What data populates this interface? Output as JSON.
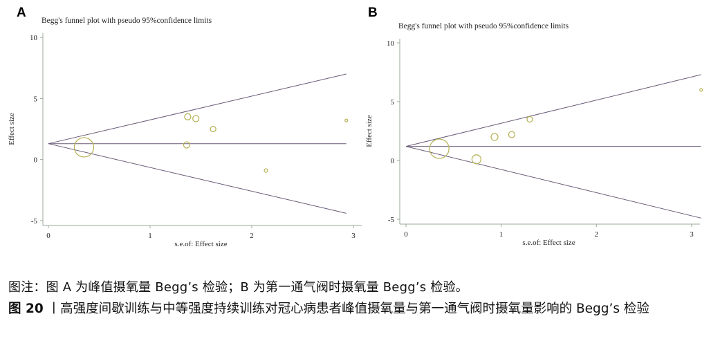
{
  "panels": [
    {
      "letter": "A"
    },
    {
      "letter": "B"
    }
  ],
  "chart_data": [
    {
      "type": "scatter",
      "panel": "A",
      "title": "Begg's funnel plot with pseudo 95%confidence limits",
      "xlabel": "s.e.of: Effect size",
      "ylabel": "Effect size",
      "xlim": [
        0,
        3
      ],
      "ylim": [
        -5,
        10
      ],
      "xticks": [
        0,
        1,
        2,
        3
      ],
      "yticks": [
        -5,
        0,
        5,
        10
      ],
      "points": [
        {
          "x": 0.35,
          "y": 1.0,
          "r": 14
        },
        {
          "x": 1.37,
          "y": 3.5,
          "r": 4.5
        },
        {
          "x": 1.45,
          "y": 3.35,
          "r": 4.5
        },
        {
          "x": 1.62,
          "y": 2.5,
          "r": 4
        },
        {
          "x": 1.36,
          "y": 1.2,
          "r": 4.5
        },
        {
          "x": 2.14,
          "y": -0.9,
          "r": 2.5
        },
        {
          "x": 2.93,
          "y": 3.2,
          "r": 2
        }
      ],
      "pooled_effect": 1.3,
      "limit_upper": [
        [
          0,
          1.3
        ],
        [
          2.93,
          7.0
        ]
      ],
      "limit_lower": [
        [
          0,
          1.3
        ],
        [
          2.93,
          -4.4
        ]
      ],
      "grid": false,
      "marker_color": "#b8b45a",
      "line_color": "#6a5a78"
    },
    {
      "type": "scatter",
      "panel": "B",
      "title": "Begg's funnel plot with pseudo 95%confidence limits",
      "xlabel": "s.e.of: Effect size",
      "ylabel": "Effect size",
      "xlim": [
        0,
        3
      ],
      "ylim": [
        -5,
        10
      ],
      "xticks": [
        0,
        1,
        2,
        3
      ],
      "yticks": [
        -5,
        0,
        5,
        10
      ],
      "points": [
        {
          "x": 0.35,
          "y": 1.0,
          "r": 14
        },
        {
          "x": 0.74,
          "y": 0.1,
          "r": 6.5
        },
        {
          "x": 0.93,
          "y": 2.0,
          "r": 5
        },
        {
          "x": 1.11,
          "y": 2.2,
          "r": 4.5
        },
        {
          "x": 1.3,
          "y": 3.5,
          "r": 4
        },
        {
          "x": 3.1,
          "y": 6.0,
          "r": 2
        }
      ],
      "pooled_effect": 1.2,
      "limit_upper": [
        [
          0,
          1.2
        ],
        [
          3.1,
          7.3
        ]
      ],
      "limit_lower": [
        [
          0,
          1.2
        ],
        [
          3.1,
          -4.9
        ]
      ],
      "grid": false,
      "marker_color": "#b8b45a",
      "line_color": "#6a5a78"
    }
  ],
  "caption": {
    "note": "图注：图 A 为峰值摄氧量 Begg’s 检验；B 为第一通气阀时摄氧量 Begg’s 检验。",
    "figure_label": "图 20",
    "figure_text": " 丨高强度间歇训练与中等强度持续训练对冠心病患者峰值摄氧量与第一通气阀时摄氧量影响的 Begg’s 检验"
  }
}
